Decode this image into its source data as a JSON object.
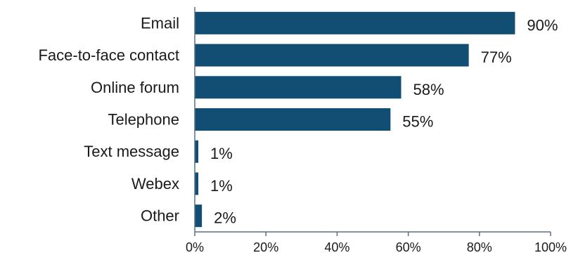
{
  "chart_data": {
    "type": "bar",
    "orientation": "horizontal",
    "categories": [
      "Email",
      "Face-to-face contact",
      "Online forum",
      "Telephone",
      "Text message",
      "Webex",
      "Other"
    ],
    "values": [
      90,
      77,
      58,
      55,
      1,
      1,
      2
    ],
    "value_labels": [
      "90%",
      "77%",
      "58%",
      "55%",
      "1%",
      "1%",
      "2%"
    ],
    "x_ticks": [
      "0%",
      "20%",
      "40%",
      "60%",
      "80%",
      "100%"
    ],
    "xlim": [
      0,
      100
    ],
    "grid": false,
    "legend": "none",
    "bar_color": "#124e73"
  }
}
